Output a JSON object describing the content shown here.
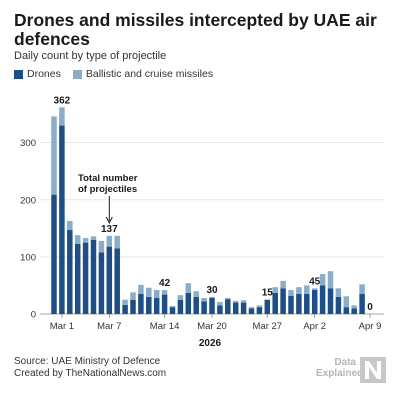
{
  "header": {
    "title": "Drones and missiles intercepted by UAE air defences",
    "subtitle": "Daily count by type of projectile"
  },
  "legend": [
    {
      "label": "Drones",
      "color": "#1d4e86"
    },
    {
      "label": "Ballistic and cruise missiles",
      "color": "#8aaec9"
    }
  ],
  "footer": {
    "source": "Source: UAE Ministry of Defence",
    "credit": "Created by TheNationalNews.com"
  },
  "brand": {
    "line1": "Data",
    "line2": "Explained",
    "mark_icon": "the-national-logo-icon"
  },
  "chart_data": {
    "type": "bar",
    "stacked": true,
    "categories": [
      "Feb 28",
      "Mar 1",
      "Mar 2",
      "Mar 3",
      "Mar 4",
      "Mar 5",
      "Mar 6",
      "Mar 7",
      "Mar 8",
      "Mar 9",
      "Mar 10",
      "Mar 11",
      "Mar 12",
      "Mar 13",
      "Mar 14",
      "Mar 15",
      "Mar 16",
      "Mar 17",
      "Mar 18",
      "Mar 19",
      "Mar 20",
      "Mar 21",
      "Mar 22",
      "Mar 23",
      "Mar 24",
      "Mar 25",
      "Mar 26",
      "Mar 27",
      "Mar 28",
      "Mar 29",
      "Mar 30",
      "Mar 31",
      "Apr 1",
      "Apr 2",
      "Apr 3",
      "Apr 4",
      "Apr 5",
      "Apr 6",
      "Apr 7",
      "Apr 8",
      "Apr 9"
    ],
    "series": [
      {
        "name": "Drones",
        "color": "#1d4e86",
        "values": [
          209,
          330,
          147,
          123,
          125,
          130,
          108,
          118,
          115,
          16,
          25,
          35,
          30,
          28,
          34,
          12,
          25,
          37,
          30,
          22,
          28,
          15,
          26,
          20,
          20,
          10,
          12,
          25,
          37,
          45,
          32,
          35,
          35,
          42,
          50,
          45,
          30,
          12,
          10,
          35,
          0
        ]
      },
      {
        "name": "Ballistic and cruise missiles",
        "color": "#8aaec9",
        "values": [
          137,
          32,
          16,
          15,
          8,
          6,
          20,
          19,
          22,
          9,
          13,
          16,
          16,
          14,
          8,
          2,
          8,
          17,
          10,
          6,
          2,
          6,
          2,
          3,
          4,
          2,
          3,
          -10,
          10,
          13,
          10,
          12,
          15,
          3,
          20,
          30,
          15,
          19,
          5,
          17,
          0
        ]
      }
    ],
    "totals_labeled": [
      {
        "category": "Mar 1",
        "label": "362"
      },
      {
        "category": "Mar 7",
        "label": "137"
      },
      {
        "category": "Mar 14",
        "label": "42"
      },
      {
        "category": "Mar 20",
        "label": "30"
      },
      {
        "category": "Mar 27",
        "label": "15"
      },
      {
        "category": "Apr 2",
        "label": "45"
      },
      {
        "category": "Apr 9",
        "label": "0"
      }
    ],
    "annotation": {
      "text_line1": "Total number",
      "text_line2": "of projectiles",
      "points_to": "Mar 7"
    },
    "x_ticks": [
      "Mar 1",
      "Mar 7",
      "Mar 14",
      "Mar 20",
      "Mar 27",
      "Apr 2",
      "Apr 9"
    ],
    "x_year_label": "2026",
    "y_ticks": [
      0,
      100,
      200,
      300
    ],
    "ylim": [
      0,
      380
    ],
    "grid": true,
    "legend_position": "top-left"
  }
}
